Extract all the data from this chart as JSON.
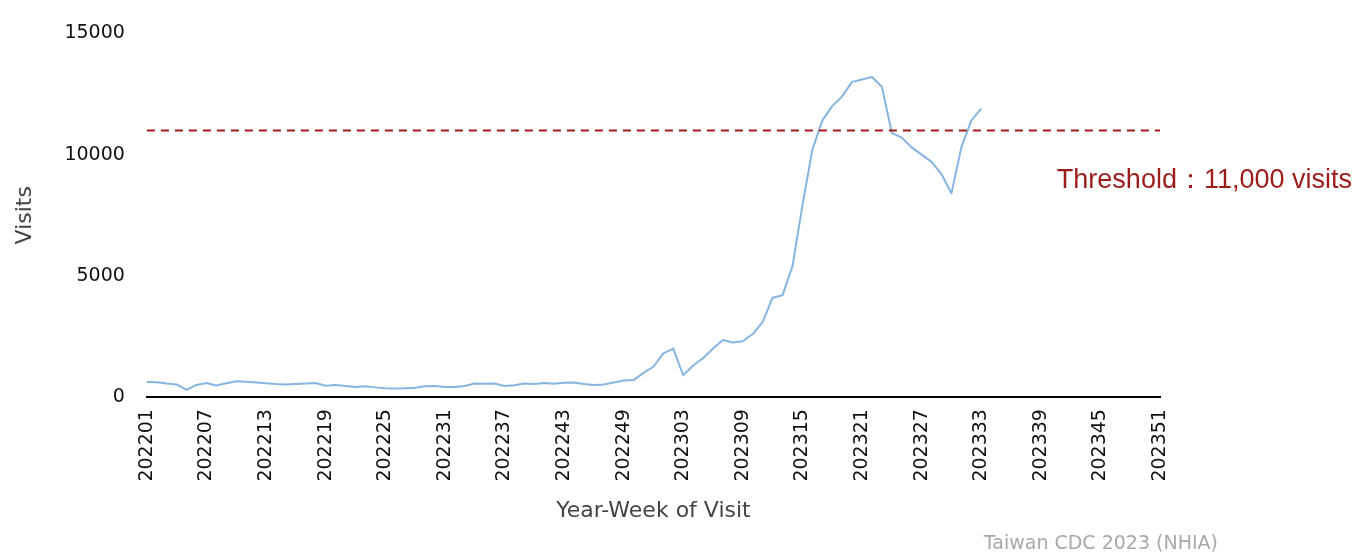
{
  "chart_data": {
    "type": "line",
    "xlabel": "Year-Week of Visit",
    "ylabel": "Visits",
    "categories": [
      "202201",
      null,
      null,
      null,
      null,
      null,
      "202207",
      null,
      null,
      null,
      null,
      null,
      "202213",
      null,
      null,
      null,
      null,
      null,
      "202219",
      null,
      null,
      null,
      null,
      null,
      "202225",
      null,
      null,
      null,
      null,
      null,
      "202231",
      null,
      null,
      null,
      null,
      null,
      "202237",
      null,
      null,
      null,
      null,
      null,
      "202243",
      null,
      null,
      null,
      null,
      null,
      "202249",
      null,
      null,
      null,
      null,
      null,
      "202303",
      null,
      null,
      null,
      null,
      null,
      "202309",
      null,
      null,
      null,
      null,
      null,
      "202315",
      null,
      null,
      null,
      null,
      null,
      "202321",
      null,
      null,
      null,
      null,
      null,
      "202327",
      null,
      null,
      null,
      null,
      null,
      "202333",
      null,
      null,
      null,
      null,
      null,
      "202339",
      null,
      null,
      null,
      null,
      null,
      "202345",
      null,
      null,
      null,
      null,
      null,
      "202351"
    ],
    "series": [
      {
        "color": "#85b5e0",
        "values": [
          620,
          610,
          560,
          520,
          300,
          500,
          580,
          480,
          570,
          650,
          630,
          600,
          570,
          540,
          520,
          540,
          560,
          580,
          470,
          500,
          460,
          420,
          450,
          400,
          360,
          350,
          360,
          380,
          450,
          460,
          420,
          420,
          460,
          560,
          550,
          560,
          460,
          490,
          560,
          540,
          580,
          550,
          590,
          600,
          540,
          500,
          520,
          600,
          680,
          700,
          1000,
          1250,
          1800,
          2000,
          900,
          1300,
          1600,
          2000,
          2350,
          2250,
          2300,
          2600,
          3100,
          4100,
          4200,
          5400,
          7900,
          10200,
          11400,
          12000,
          12400,
          13000,
          13100,
          13200,
          12800,
          10900,
          10700,
          10300,
          10000,
          9700,
          9200,
          8400,
          10300,
          11400,
          11900,
          null,
          null,
          null,
          null,
          null,
          null,
          null,
          null,
          null,
          null,
          null,
          null,
          null,
          null,
          null,
          null,
          null,
          null
        ]
      }
    ],
    "ylim": [
      0,
      15000
    ],
    "yticks": [
      0,
      5000,
      10000,
      15000
    ],
    "grid": false,
    "legend": false,
    "marker": "none",
    "line_style": "solid",
    "ref_lines": [
      {
        "axis": "y",
        "value": 11000,
        "label": "Threshold：11,000 visits",
        "color": "#9e1b1b",
        "line_style": "dashed"
      }
    ],
    "annotations": [
      "Taiwan CDC 2023 (NHIA)"
    ]
  }
}
